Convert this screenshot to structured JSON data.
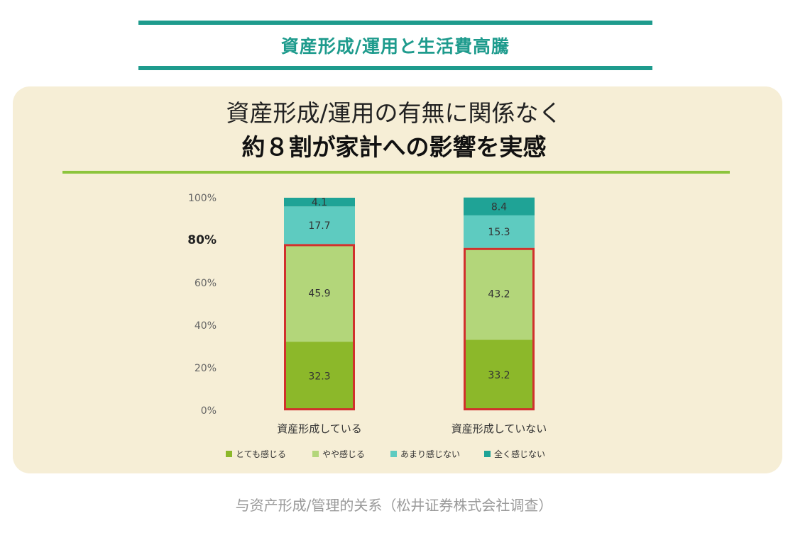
{
  "header": {
    "title": "資産形成/運用と生活費高騰"
  },
  "headline": {
    "line1": "資産形成/運用の有無に関係なく",
    "line2": "約８割が家計への影響を実感"
  },
  "caption": "与资产形成/管理的关系（松井证券株式会社调查）",
  "colors": {
    "brand_teal": "#1e9b8d",
    "accent_green": "#8cc43c",
    "highlight_red": "#d0312d",
    "panel_bg": "#f6eed6"
  },
  "chart_data": {
    "type": "bar",
    "stacked": true,
    "categories": [
      "資産形成している",
      "資産形成していない"
    ],
    "series": [
      {
        "name": "とても感じる",
        "color": "#8cb82a",
        "values": [
          32.3,
          33.2
        ]
      },
      {
        "name": "やや感じる",
        "color": "#b3d67a",
        "values": [
          45.9,
          43.2
        ]
      },
      {
        "name": "あまり感じない",
        "color": "#5ecbc0",
        "values": [
          17.7,
          15.3
        ]
      },
      {
        "name": "全く感じない",
        "color": "#1fa396",
        "values": [
          4.1,
          8.4
        ]
      }
    ],
    "y_ticks": [
      "0%",
      "20%",
      "40%",
      "60%",
      "80%",
      "100%"
    ],
    "highlight_tick": "80%",
    "ylim": [
      0,
      100
    ],
    "highlight_box": "series 1–2 outlined in red",
    "legend_position": "bottom"
  }
}
